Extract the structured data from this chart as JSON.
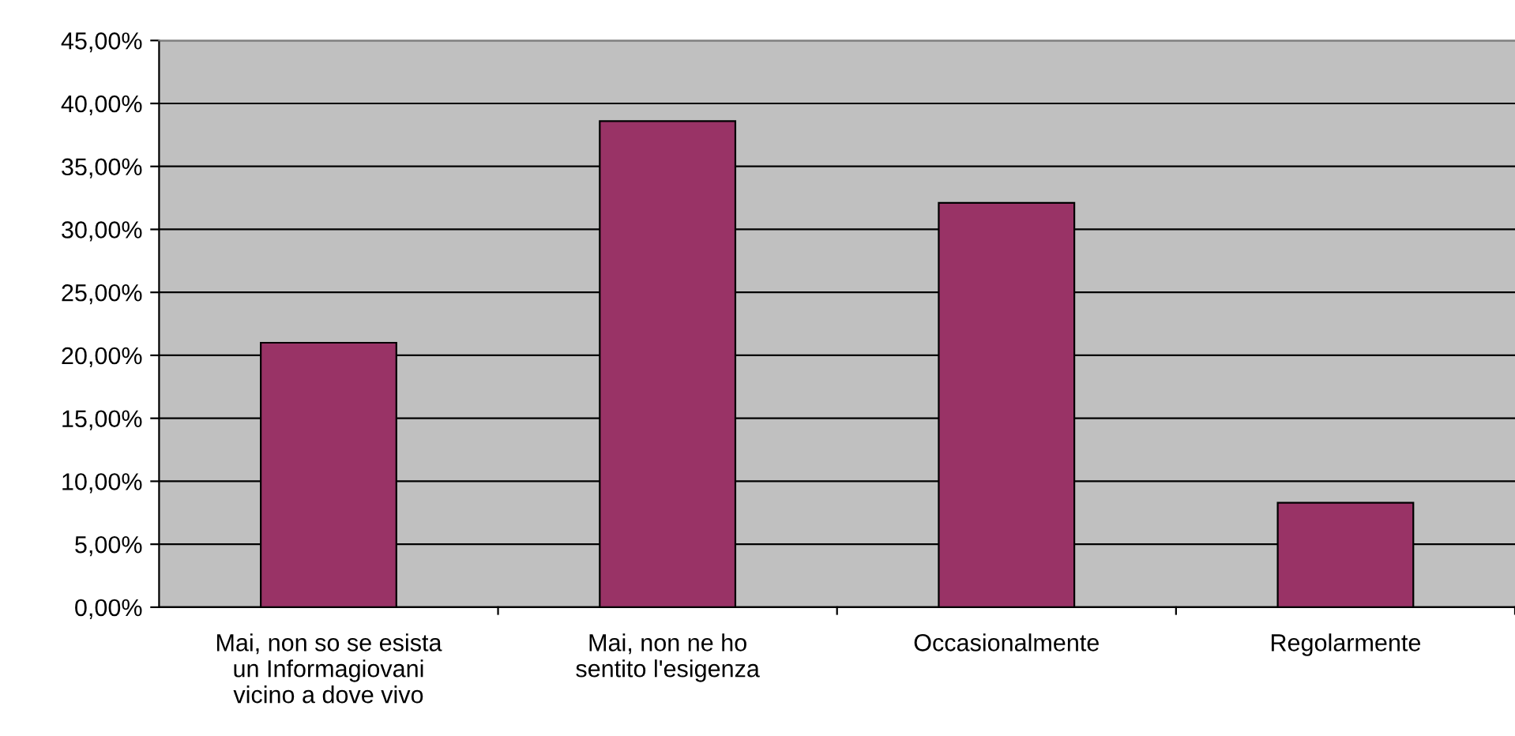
{
  "chart_data": {
    "type": "bar",
    "categories": [
      "Mai, non so se esista\nun Informagiovani\nvicino a dove vivo",
      "Mai, non ne ho\nsentito l'esigenza",
      "Occasionalmente",
      "Regolarmente"
    ],
    "values": [
      21.0,
      38.6,
      32.1,
      8.3
    ],
    "color": "#993366",
    "ylim": [
      0,
      45
    ],
    "yticks": [
      {
        "value": 0,
        "label": "0,00%"
      },
      {
        "value": 5,
        "label": "5,00%"
      },
      {
        "value": 10,
        "label": "10,00%"
      },
      {
        "value": 15,
        "label": "15,00%"
      },
      {
        "value": 20,
        "label": "20,00%"
      },
      {
        "value": 25,
        "label": "25,00%"
      },
      {
        "value": 30,
        "label": "30,00%"
      },
      {
        "value": 35,
        "label": "35,00%"
      },
      {
        "value": 40,
        "label": "40,00%"
      },
      {
        "value": 45,
        "label": "45,00%"
      }
    ],
    "grid": "y"
  }
}
